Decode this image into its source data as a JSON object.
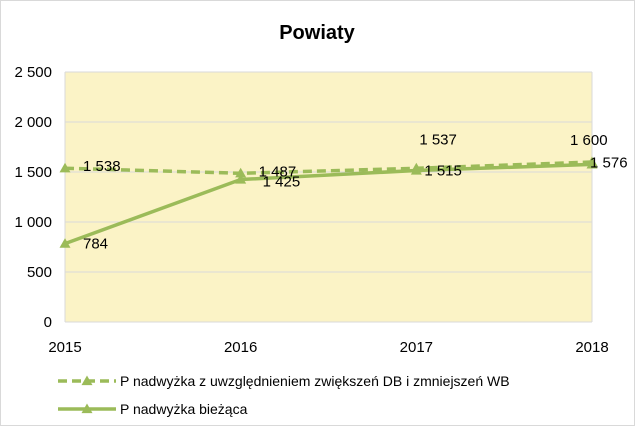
{
  "chart_data": {
    "type": "line",
    "title": "Powiaty",
    "categories": [
      "2015",
      "2016",
      "2017",
      "2018"
    ],
    "ylim": [
      0,
      2500
    ],
    "yticks": [
      "0",
      "500",
      "1 000",
      "1 500",
      "2 000",
      "2 500"
    ],
    "ytick_values": [
      0,
      500,
      1000,
      1500,
      2000,
      2500
    ],
    "grid": true,
    "legend_position": "bottom-left",
    "plot_background": "#fbf3c6",
    "series": [
      {
        "name": "P nadwyżka z uwzględnieniem zwiększeń DB i zmniejszeń WB",
        "style": "dashed",
        "color": "#9bbb59",
        "values": [
          1538,
          1487,
          1537,
          1600
        ],
        "labels": [
          "1 538",
          "1 487",
          "1 537",
          "1 600"
        ]
      },
      {
        "name": "P nadwyżka bieżąca",
        "style": "solid",
        "color": "#9bbb59",
        "values": [
          784,
          1425,
          1515,
          1576
        ],
        "labels": [
          "784",
          "1 425",
          "1 515",
          "1 576"
        ]
      }
    ]
  }
}
